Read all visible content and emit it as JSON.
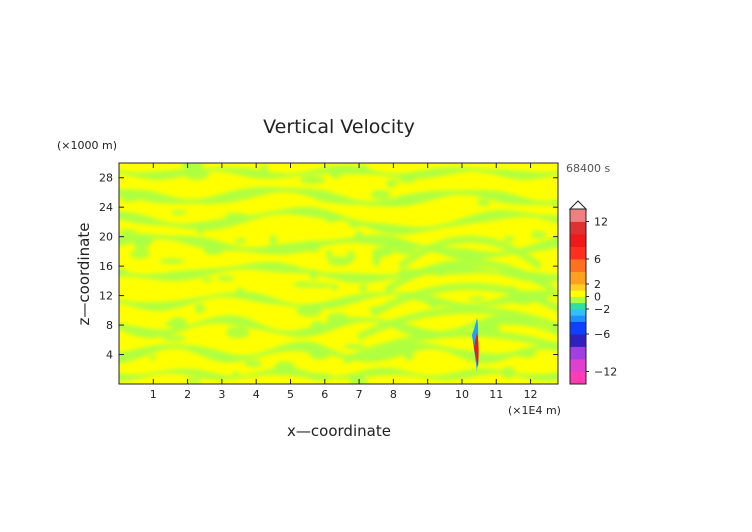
{
  "chart_data": {
    "type": "heatmap",
    "title": "Vertical Velocity",
    "xlabel": "x—coordinate",
    "ylabel": "z—coordinate",
    "x_unit": "(×1E4 m)",
    "y_unit": "(×1000 m)",
    "time_label": "68400 s",
    "xlim": [
      0,
      12.8
    ],
    "ylim": [
      0,
      30
    ],
    "x_ticks": [
      "1",
      "2",
      "3",
      "4",
      "5",
      "6",
      "7",
      "8",
      "9",
      "10",
      "11",
      "12"
    ],
    "y_ticks": [
      "4",
      "8",
      "12",
      "16",
      "20",
      "24",
      "28"
    ],
    "colorbar": {
      "range": [
        -14,
        14
      ],
      "tick_labels": [
        "12",
        "6",
        "2",
        "0",
        "−2",
        "−6",
        "−12"
      ],
      "tick_values": [
        12,
        6,
        2,
        0,
        -2,
        -6,
        -12
      ]
    },
    "colors": {
      "positive_small": "#ffff00",
      "negative_small": "#aaff44",
      "strong_up": "#e02020",
      "strong_down": "#2080ff"
    },
    "grid": false,
    "legend": "right"
  }
}
